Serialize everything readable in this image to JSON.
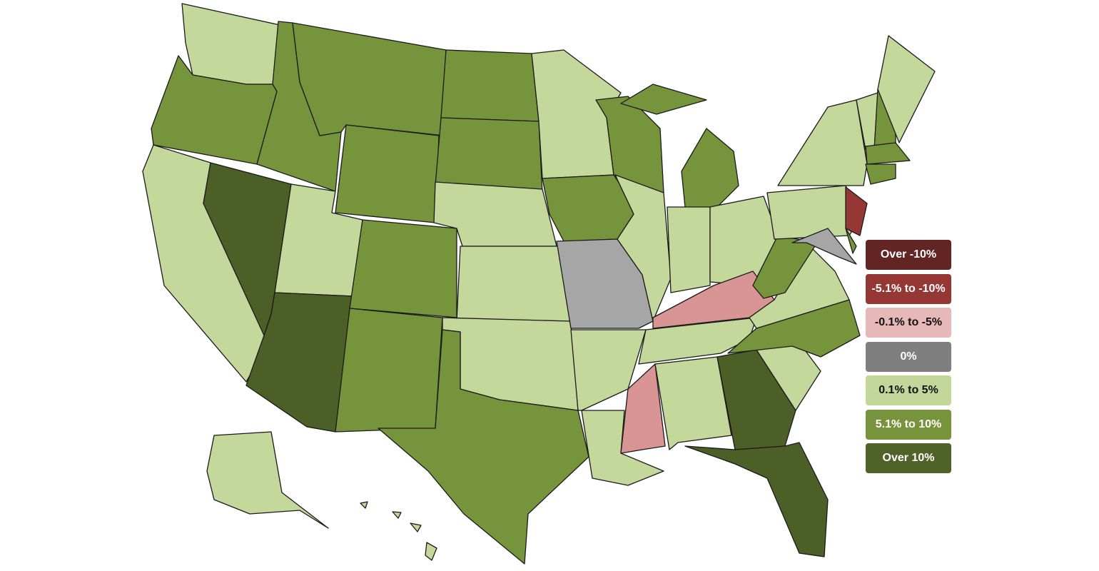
{
  "legend": {
    "items": [
      {
        "label": "Over -10%",
        "color": "#632523",
        "text_color": "#ffffff"
      },
      {
        "label": "-5.1% to -10%",
        "color": "#953735",
        "text_color": "#ffffff"
      },
      {
        "label": "-0.1% to -5%",
        "color": "#e6b9b8",
        "text_color": "#111111"
      },
      {
        "label": "0%",
        "color": "#7f7f7f",
        "text_color": "#ffffff"
      },
      {
        "label": "0.1% to 5%",
        "color": "#c4d79b",
        "text_color": "#111111"
      },
      {
        "label": "5.1% to 10%",
        "color": "#77933c",
        "text_color": "#ffffff"
      },
      {
        "label": "Over 10%",
        "color": "#4f6228",
        "text_color": "#ffffff"
      }
    ]
  },
  "map_fill_colors": {
    "Over 10%": "#4c5f26",
    "5.1% to 10%": "#76943b",
    "0.1% to 5%": "#c4d89c",
    "0%": "#a6a6a6",
    "-0.1% to -5%": "#d99594",
    "-5.1% to -10%": "#953735"
  },
  "state_categories": {
    "WA": "0.1% to 5%",
    "OR": "5.1% to 10%",
    "CA": "0.1% to 5%",
    "NV": "Over 10%",
    "ID": "5.1% to 10%",
    "MT": "5.1% to 10%",
    "WY": "5.1% to 10%",
    "UT": "0.1% to 5%",
    "AZ": "Over 10%",
    "CO": "5.1% to 10%",
    "NM": "5.1% to 10%",
    "ND": "5.1% to 10%",
    "SD": "5.1% to 10%",
    "NE": "0.1% to 5%",
    "KS": "0.1% to 5%",
    "OK": "0.1% to 5%",
    "TX": "5.1% to 10%",
    "MN": "0.1% to 5%",
    "IA": "5.1% to 10%",
    "MO": "0%",
    "AR": "0.1% to 5%",
    "LA": "0.1% to 5%",
    "WI": "5.1% to 10%",
    "IL": "0.1% to 5%",
    "MI": "5.1% to 10%",
    "IN": "0.1% to 5%",
    "OH": "0.1% to 5%",
    "KY": "-0.1% to -5%",
    "TN": "0.1% to 5%",
    "MS": "-0.1% to -5%",
    "AL": "0.1% to 5%",
    "GA": "Over 10%",
    "FL": "Over 10%",
    "SC": "0.1% to 5%",
    "NC": "5.1% to 10%",
    "VA": "0.1% to 5%",
    "WV": "5.1% to 10%",
    "PA": "0.1% to 5%",
    "NY": "0.1% to 5%",
    "VT": "0.1% to 5%",
    "NH": "5.1% to 10%",
    "ME": "0.1% to 5%",
    "MA": "5.1% to 10%",
    "CT": "5.1% to 10%",
    "NJ": "-5.1% to -10%",
    "MD": "0%",
    "DE": "5.1% to 10%",
    "AK": "0.1% to 5%",
    "HI": "0.1% to 5%"
  }
}
